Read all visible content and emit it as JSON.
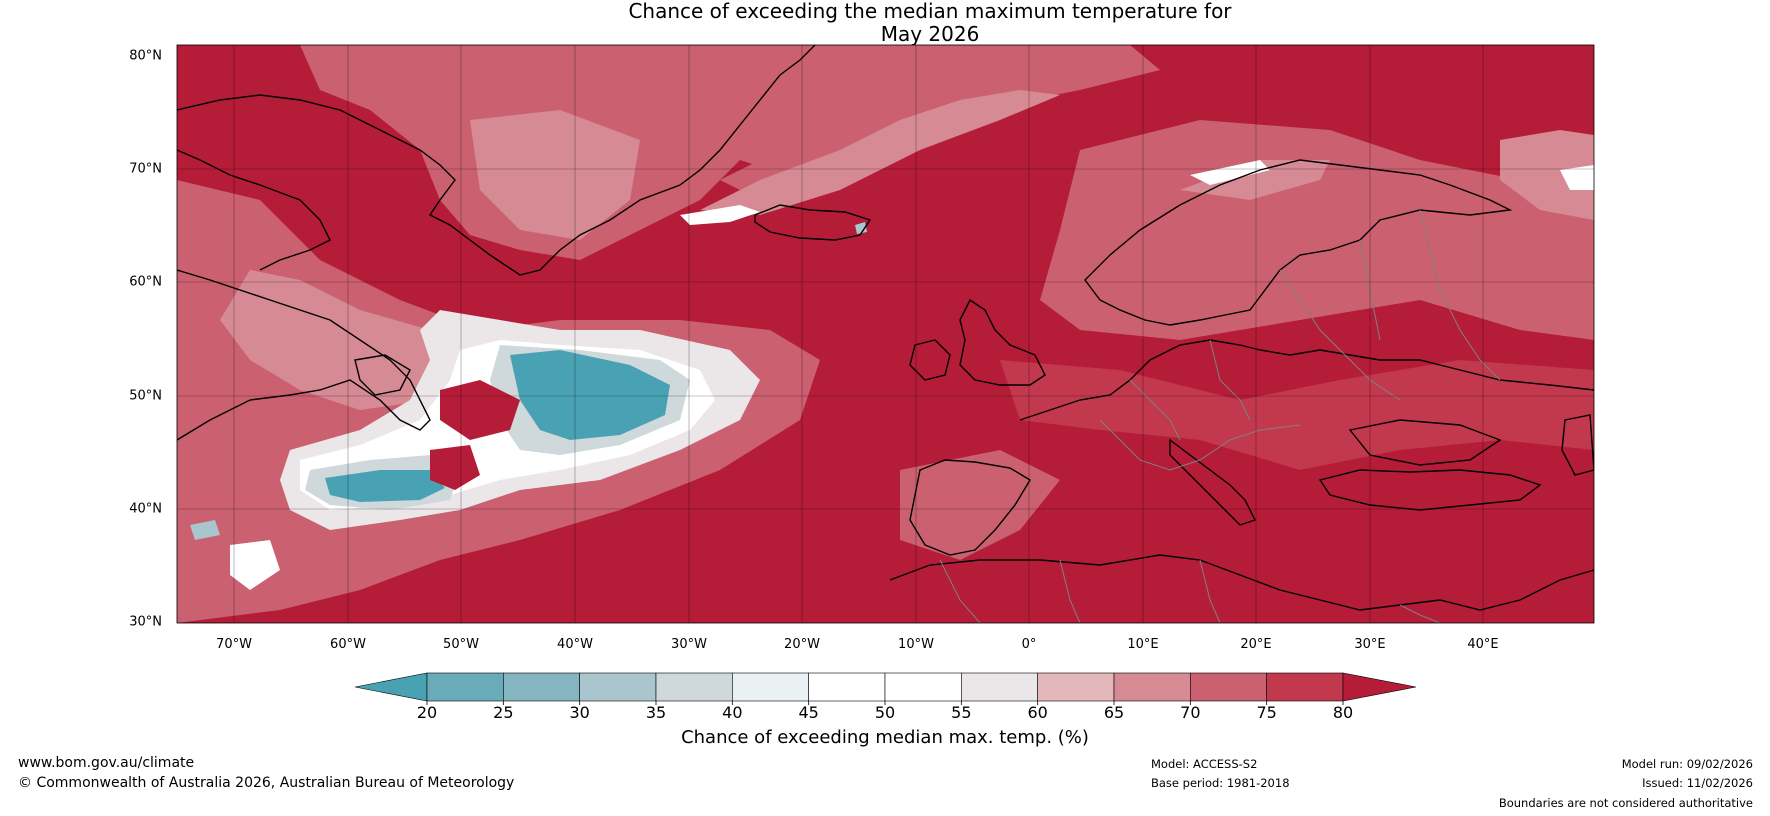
{
  "title": {
    "line1": "Chance of exceeding the median maximum temperature for",
    "line2": "May 2026"
  },
  "map": {
    "latitude_labels": [
      "80°N",
      "70°N",
      "60°N",
      "50°N",
      "40°N",
      "30°N"
    ],
    "longitude_labels": [
      "70°W",
      "60°W",
      "50°W",
      "40°W",
      "30°W",
      "20°W",
      "10°W",
      "0°",
      "10°E",
      "20°E",
      "30°E",
      "40°E"
    ],
    "colors": {
      "dominant": "#b41c38",
      "c75": "#c2384c",
      "c70": "#ca6070",
      "c65": "#d68a94",
      "c60": "#e4b7bb",
      "c55": "#ebe6e7",
      "c50": "#ffffff",
      "c40": "#eaf1f2",
      "c35": "#cfd8db",
      "c30": "#a9c6ce",
      "c25": "#86b5c2",
      "c20": "#48a2b4",
      "coast": "#000000",
      "borders": "#808080"
    }
  },
  "colorbar": {
    "ticks": [
      "20",
      "25",
      "30",
      "35",
      "40",
      "45",
      "50",
      "55",
      "60",
      "65",
      "70",
      "75",
      "80"
    ],
    "colors": [
      "#48a2b4",
      "#6aabba",
      "#86b5c2",
      "#a9c6ce",
      "#cfd8db",
      "#eaf1f2",
      "#ffffff",
      "#ffffff",
      "#ebe6e7",
      "#e4b7bb",
      "#d68a94",
      "#ca6070",
      "#c2384c",
      "#b41c38"
    ],
    "label": "Chance of exceeding median max. temp. (%)"
  },
  "footer": {
    "website": "www.bom.gov.au/climate",
    "copyright": "© Commonwealth of Australia 2026, Australian Bureau of Meteorology",
    "model": "Model: ACCESS-S2",
    "base_period": "Base period: 1981-2018",
    "model_run": "Model run: 09/02/2026",
    "issued": "Issued: 11/02/2026",
    "disclaimer": "Boundaries are not considered authoritative"
  }
}
